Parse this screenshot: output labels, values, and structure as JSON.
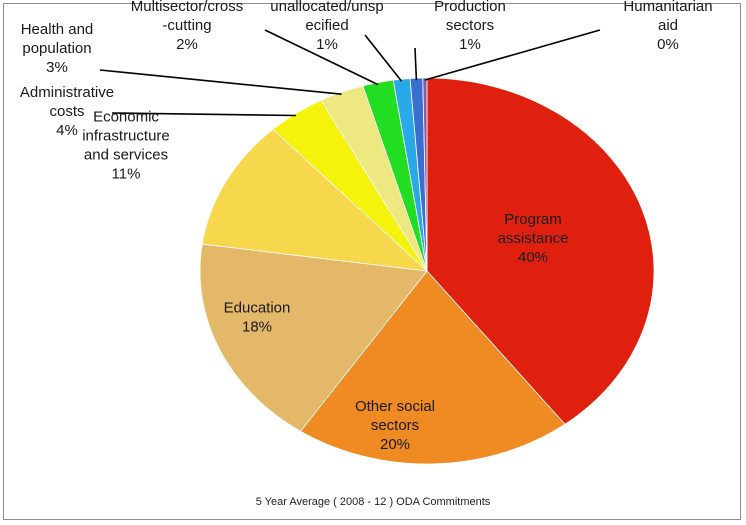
{
  "chart_data": {
    "type": "pie",
    "title": "",
    "caption": "5 Year Average ( 2008 - 12 ) ODA Commitments",
    "slices": [
      {
        "name": "Program assistance",
        "label_lines": [
          "Program",
          "assistance"
        ],
        "pct_label": "40%",
        "value": 40,
        "color": "#e0200f"
      },
      {
        "name": "Other social sectors",
        "label_lines": [
          "Other social",
          "sectors"
        ],
        "pct_label": "20%",
        "value": 20,
        "color": "#f08a22"
      },
      {
        "name": "Education",
        "label_lines": [
          "Education"
        ],
        "pct_label": "18%",
        "value": 18,
        "color": "#e3b868"
      },
      {
        "name": "Economic infrastructure and services",
        "label_lines": [
          "Economic",
          "infrastructure",
          "and services"
        ],
        "pct_label": "11%",
        "value": 11,
        "color": "#f7d84c"
      },
      {
        "name": "Administrative costs",
        "label_lines": [
          "Administrative",
          "costs"
        ],
        "pct_label": "4%",
        "value": 4.2,
        "color": "#f5f20c"
      },
      {
        "name": "Health and population",
        "label_lines": [
          "Health and",
          "population"
        ],
        "pct_label": "3%",
        "value": 3.2,
        "color": "#eee880"
      },
      {
        "name": "Multisector/cross-cutting",
        "label_lines": [
          "Multisector/cross",
          "-cutting"
        ],
        "pct_label": "2%",
        "value": 2.2,
        "color": "#22dd22"
      },
      {
        "name": "unallocated/unspecified",
        "label_lines": [
          "unallocated/unsp",
          "ecified"
        ],
        "pct_label": "1%",
        "value": 1.2,
        "color": "#29a9e8"
      },
      {
        "name": "Production sectors",
        "label_lines": [
          "Production",
          "sectors"
        ],
        "pct_label": "1%",
        "value": 0.9,
        "color": "#3a6fd0"
      },
      {
        "name": "Humanitarian aid",
        "label_lines": [
          "Humanitarian",
          "aid"
        ],
        "pct_label": "0%",
        "value": 0.3,
        "color": "#8a5aa8"
      }
    ]
  }
}
